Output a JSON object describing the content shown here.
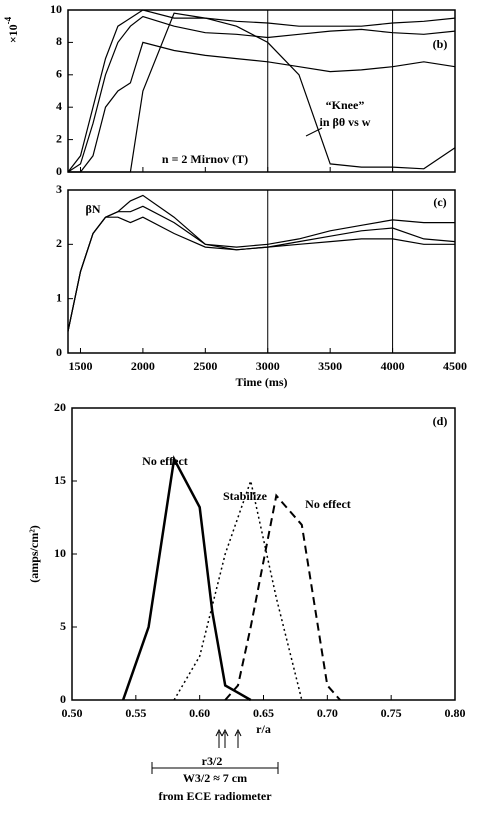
{
  "chart_data": [
    {
      "type": "line",
      "panel": "(b)",
      "y_multiplier_base": "×10",
      "y_multiplier_exp": "-4",
      "x": [
        1400,
        1500,
        1600,
        1700,
        1800,
        1900,
        2000,
        2250,
        2500,
        2750,
        3000,
        3250,
        3500,
        3750,
        4000,
        4250,
        4500
      ],
      "series": [
        {
          "color": "#000000",
          "dash": "solid",
          "values": [
            0,
            1,
            4,
            7,
            9,
            9.5,
            10,
            9.5,
            9.5,
            9.3,
            9.2,
            9,
            9,
            9,
            9.2,
            9.3,
            9.5
          ]
        },
        {
          "color": "#000000",
          "dash": "solid",
          "values": [
            0,
            0.5,
            3,
            6,
            8,
            9,
            9.6,
            9,
            8.6,
            8.5,
            8.3,
            8.5,
            8.7,
            8.8,
            8.6,
            8.5,
            8.7
          ]
        },
        {
          "color": "#000000",
          "dash": "solid",
          "values": [
            0,
            0,
            1,
            4,
            5,
            5.5,
            8,
            7.5,
            7.2,
            7,
            6.8,
            6.5,
            6.2,
            6.3,
            6.5,
            6.8,
            6.5
          ]
        },
        {
          "color": "#000000",
          "dash": "solid",
          "values": [
            0,
            0,
            0,
            0,
            0,
            0,
            5,
            9.8,
            9.5,
            9,
            8,
            6,
            0.5,
            0.3,
            0.3,
            0.2,
            1.5
          ]
        }
      ],
      "xlim": [
        1400,
        4500
      ],
      "ylim": [
        0,
        10
      ],
      "xticks": [
        1500,
        2000,
        2500,
        3000,
        3500,
        4000,
        4500
      ],
      "yticks": [
        0,
        2,
        4,
        6,
        8,
        10
      ],
      "show_xtick_labels": false,
      "vlines": [
        3000,
        4000
      ],
      "annotations": [
        "(b)",
        "“Knee”",
        "in βθ vs w",
        "n = 2 Mirnov (T)"
      ]
    },
    {
      "type": "line",
      "panel": "(c)",
      "x_label": "Time (ms)",
      "x": [
        1400,
        1500,
        1600,
        1700,
        1800,
        1900,
        2000,
        2250,
        2500,
        2750,
        3000,
        3250,
        3500,
        3750,
        4000,
        4250,
        4500
      ],
      "series": [
        {
          "color": "#000000",
          "dash": "solid",
          "values": [
            0.4,
            1.5,
            2.2,
            2.5,
            2.6,
            2.8,
            2.9,
            2.5,
            2.0,
            1.95,
            2.0,
            2.1,
            2.25,
            2.35,
            2.45,
            2.4,
            2.4
          ]
        },
        {
          "color": "#000000",
          "dash": "solid",
          "values": [
            0.4,
            1.5,
            2.2,
            2.5,
            2.6,
            2.6,
            2.7,
            2.4,
            2.0,
            1.9,
            1.95,
            2.05,
            2.15,
            2.25,
            2.3,
            2.1,
            2.05
          ]
        },
        {
          "color": "#000000",
          "dash": "solid",
          "values": [
            0.4,
            1.5,
            2.2,
            2.5,
            2.5,
            2.4,
            2.5,
            2.2,
            1.95,
            1.9,
            1.95,
            2.0,
            2.05,
            2.1,
            2.1,
            2.0,
            2.0
          ]
        }
      ],
      "xlim": [
        1400,
        4500
      ],
      "ylim": [
        0,
        3
      ],
      "xticks": [
        1500,
        2000,
        2500,
        3000,
        3500,
        4000,
        4500
      ],
      "yticks": [
        0,
        1,
        2,
        3
      ],
      "show_xtick_labels": true,
      "vlines": [
        3000,
        4000
      ],
      "annotations": [
        "βN",
        "(c)"
      ]
    },
    {
      "type": "line",
      "panel": "(d)",
      "x_label": "r/a",
      "y_label": "(amps/cm²)",
      "series": [
        {
          "name": "No effect",
          "color": "#000000",
          "dash": "solid",
          "width": 2.5,
          "x": [
            0.54,
            0.56,
            0.58,
            0.6,
            0.61,
            0.62,
            0.63,
            0.64
          ],
          "values": [
            0,
            5,
            16.5,
            13.2,
            6,
            1,
            0.5,
            0
          ]
        },
        {
          "name": "Stabilize",
          "color": "#000000",
          "dash": "dotted",
          "width": 1.5,
          "x": [
            0.58,
            0.6,
            0.62,
            0.64,
            0.66,
            0.68
          ],
          "values": [
            0,
            3,
            10,
            15,
            7,
            0
          ]
        },
        {
          "name": "No effect",
          "color": "#000000",
          "dash": "dashed",
          "width": 2,
          "x": [
            0.62,
            0.63,
            0.64,
            0.66,
            0.67,
            0.68,
            0.7,
            0.71
          ],
          "values": [
            0,
            1,
            5,
            14,
            13,
            12,
            1,
            0
          ]
        }
      ],
      "xlim": [
        0.5,
        0.8
      ],
      "ylim": [
        0,
        20
      ],
      "xticks": [
        {
          "value": 0.5,
          "label": "0.50"
        },
        0.55,
        {
          "value": 0.6,
          "label": "0.60"
        },
        0.65,
        {
          "value": 0.7,
          "label": "0.70"
        },
        0.75,
        {
          "value": 0.8,
          "label": "0.80"
        }
      ],
      "yticks": [
        0,
        5,
        10,
        15,
        20
      ],
      "show_xtick_labels": true,
      "annotations": [
        "(d)",
        "r3/2",
        "W3/2 ≈ 7 cm",
        "from ECE radiometer"
      ]
    }
  ]
}
